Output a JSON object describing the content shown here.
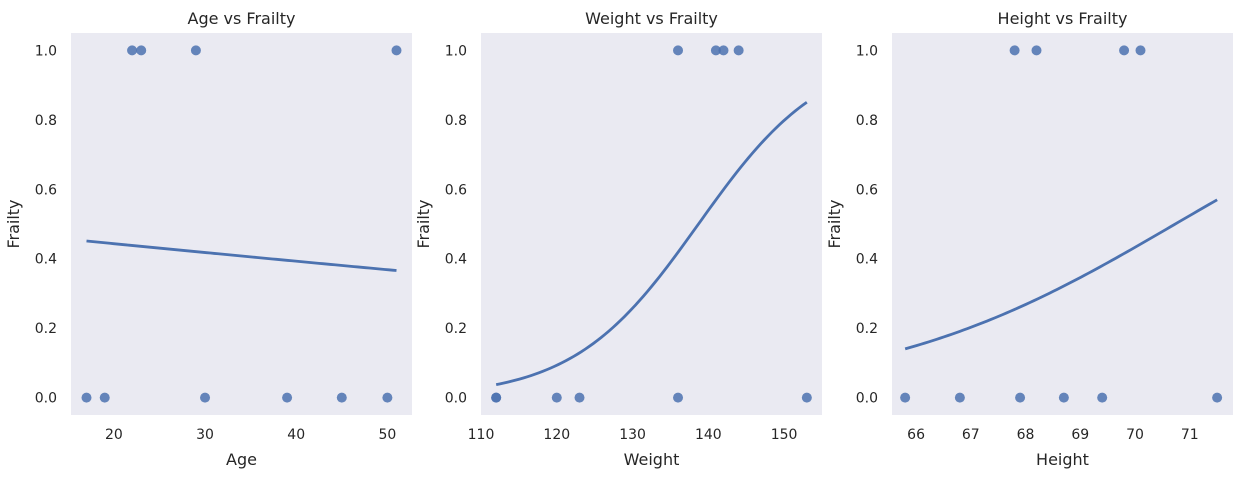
{
  "style": {
    "point_color": "#4c72b0",
    "line_color": "#4c72b0",
    "background": "#eaeaf2"
  },
  "chart_data": [
    {
      "type": "scatter",
      "title": "Age vs Frailty",
      "xlabel": "Age",
      "ylabel": "Frailty",
      "xlim": [
        15.3,
        52.7
      ],
      "ylim": [
        -0.05,
        1.05
      ],
      "xticks": [
        20,
        30,
        40,
        50
      ],
      "yticks": [
        0.0,
        0.2,
        0.4,
        0.6,
        0.8,
        1.0
      ],
      "grid": false,
      "points": [
        {
          "x": 17,
          "y": 0
        },
        {
          "x": 19,
          "y": 0
        },
        {
          "x": 22,
          "y": 1
        },
        {
          "x": 23,
          "y": 1
        },
        {
          "x": 29,
          "y": 1
        },
        {
          "x": 30,
          "y": 0
        },
        {
          "x": 39,
          "y": 0
        },
        {
          "x": 45,
          "y": 0
        },
        {
          "x": 50,
          "y": 0
        },
        {
          "x": 51,
          "y": 1
        }
      ],
      "fit": {
        "type": "logistic",
        "intercept": -0.0204,
        "slope": -0.01037,
        "x_range": [
          17,
          51
        ]
      }
    },
    {
      "type": "scatter",
      "title": "Weight vs Frailty",
      "xlabel": "Weight",
      "ylabel": "Frailty",
      "xlim": [
        110.0,
        155.0
      ],
      "ylim": [
        -0.05,
        1.05
      ],
      "xticks": [
        110,
        120,
        130,
        140,
        150
      ],
      "yticks": [
        0.0,
        0.2,
        0.4,
        0.6,
        0.8,
        1.0
      ],
      "grid": false,
      "points": [
        {
          "x": 112,
          "y": 0
        },
        {
          "x": 112,
          "y": 0
        },
        {
          "x": 120,
          "y": 0
        },
        {
          "x": 123,
          "y": 0
        },
        {
          "x": 136,
          "y": 0
        },
        {
          "x": 136,
          "y": 1
        },
        {
          "x": 141,
          "y": 1
        },
        {
          "x": 142,
          "y": 1
        },
        {
          "x": 144,
          "y": 1
        },
        {
          "x": 153,
          "y": 0
        }
      ],
      "fit": {
        "type": "logistic",
        "intercept": -16.88,
        "slope": 0.1217,
        "x_range": [
          112,
          153
        ]
      }
    },
    {
      "type": "scatter",
      "title": "Height vs Frailty",
      "xlabel": "Height",
      "ylabel": "Frailty",
      "xlim": [
        65.56,
        71.79
      ],
      "ylim": [
        -0.05,
        1.05
      ],
      "xticks": [
        66,
        67,
        68,
        69,
        70,
        71
      ],
      "yticks": [
        0.0,
        0.2,
        0.4,
        0.6,
        0.8,
        1.0
      ],
      "grid": false,
      "points": [
        {
          "x": 65.8,
          "y": 0
        },
        {
          "x": 66.8,
          "y": 0
        },
        {
          "x": 67.8,
          "y": 1
        },
        {
          "x": 67.9,
          "y": 0
        },
        {
          "x": 68.2,
          "y": 1
        },
        {
          "x": 68.7,
          "y": 0
        },
        {
          "x": 69.4,
          "y": 0
        },
        {
          "x": 69.8,
          "y": 1
        },
        {
          "x": 70.1,
          "y": 1
        },
        {
          "x": 71.5,
          "y": 0
        }
      ],
      "fit": {
        "type": "logistic",
        "intercept": -25.96,
        "slope": 0.367,
        "x_range": [
          65.8,
          71.5
        ]
      }
    }
  ]
}
